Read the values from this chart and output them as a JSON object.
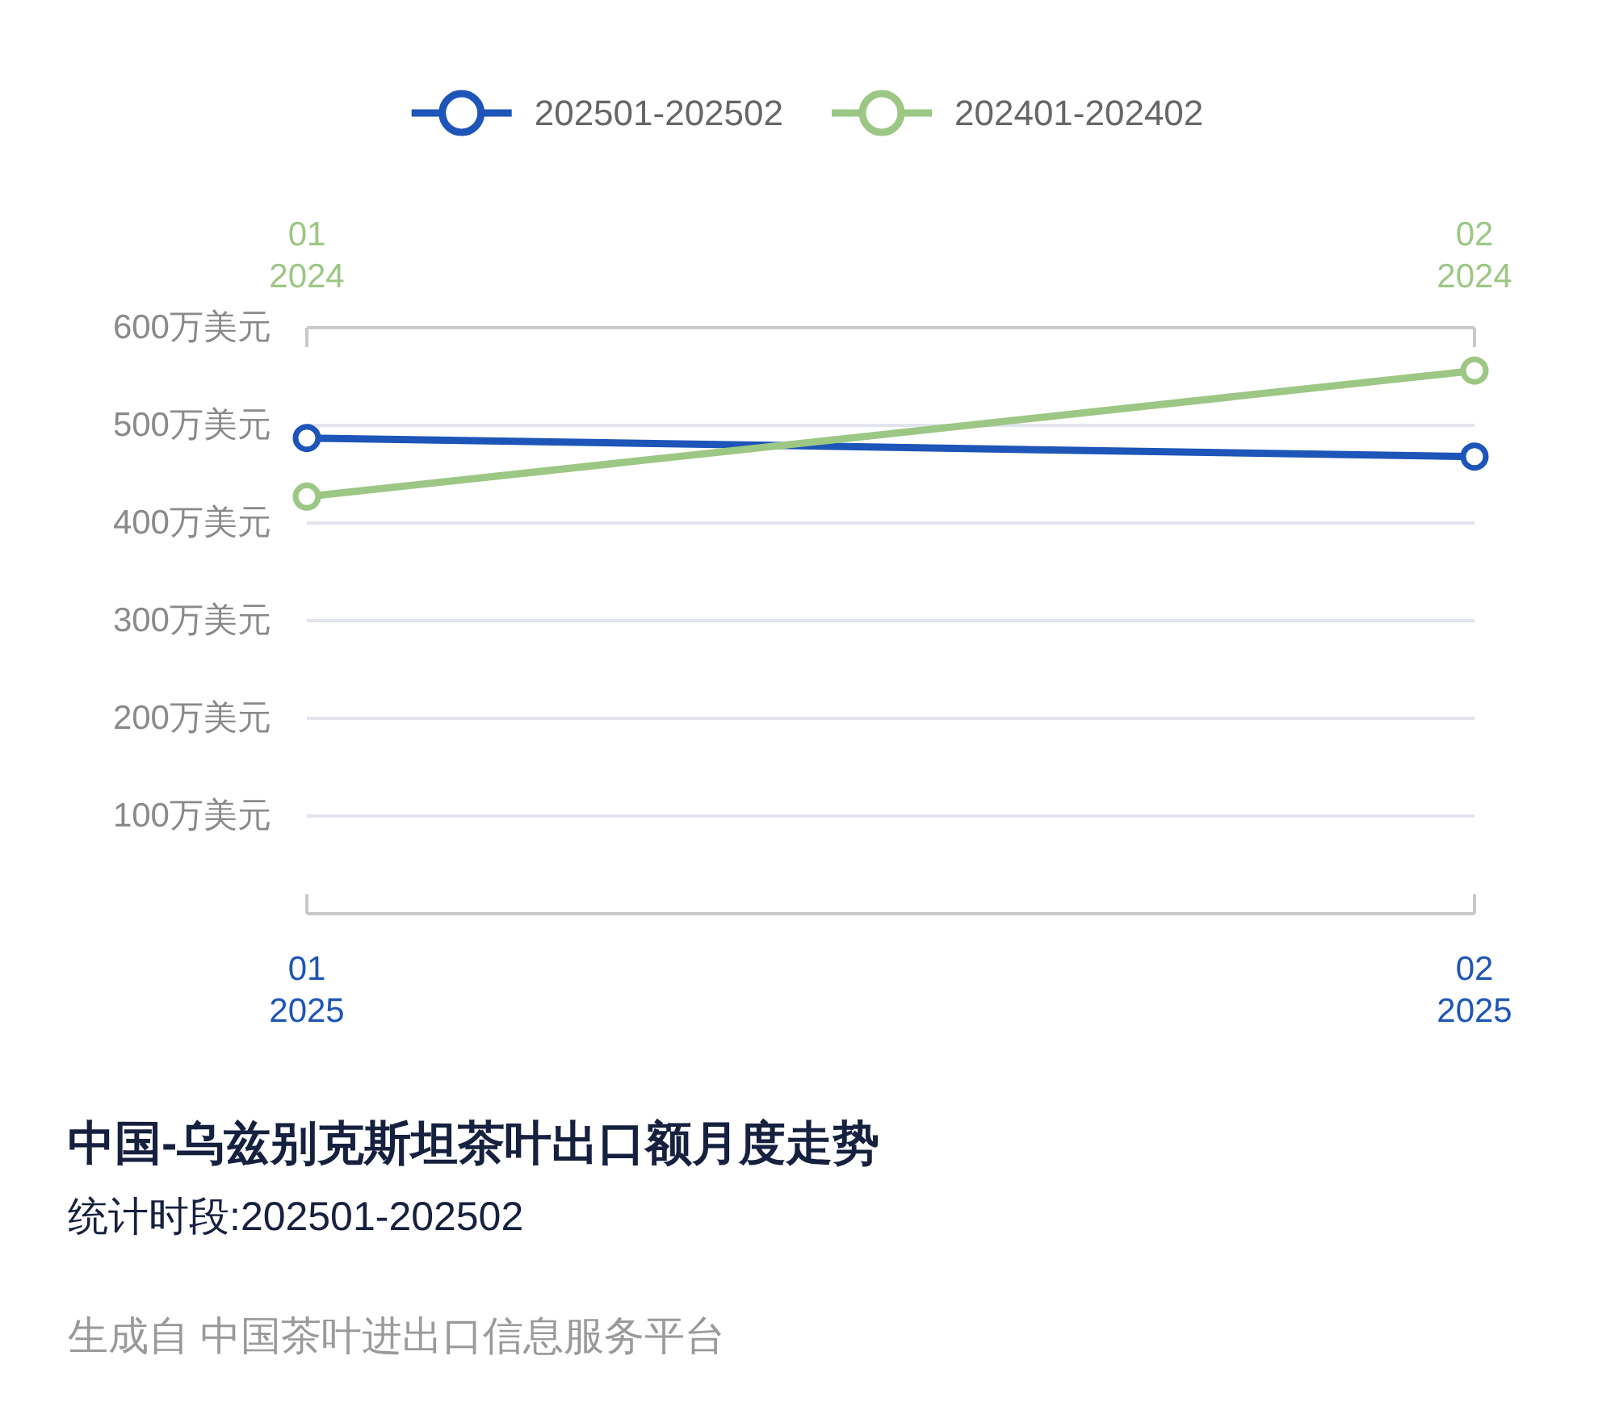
{
  "chart_data": {
    "type": "line",
    "title": "中国-乌兹别克斯坦茶叶出口额月度走势",
    "subtitle": "统计时段:202501-202502",
    "annotations": [
      "生成自 中国茶叶进出口信息服务平台"
    ],
    "xlim": [
      "2025-01",
      "2025-02"
    ],
    "xticks": [
      {
        "value": "2025-01",
        "label": "01\n2025"
      },
      {
        "value": "2025-02",
        "label": "02\n2025"
      }
    ],
    "x2lim": [
      "2024-01",
      "2024-02"
    ],
    "x2ticks": [
      {
        "value": "2024-01",
        "label": "01\n2024"
      },
      {
        "value": "2024-02",
        "label": "02\n2024"
      }
    ],
    "ylim": [
      0,
      600
    ],
    "yticks": [
      {
        "value": 100,
        "label": "100万美元"
      },
      {
        "value": 200,
        "label": "200万美元"
      },
      {
        "value": 300,
        "label": "300万美元"
      },
      {
        "value": 400,
        "label": "400万美元"
      },
      {
        "value": 500,
        "label": "500万美元"
      },
      {
        "value": 600,
        "label": "600万美元"
      }
    ],
    "series": [
      {
        "name": "202501-202502",
        "color": "#1d55b8",
        "x": [
          "2025-01",
          "2025-02"
        ],
        "values": [
          487,
          468
        ]
      },
      {
        "name": "202401-202402",
        "color": "#9cc784",
        "axis": "x2",
        "x": [
          "2024-01",
          "2024-02"
        ],
        "values": [
          427,
          556
        ]
      }
    ],
    "grid": "y",
    "legend": "top",
    "marker": "circle",
    "line_style": "solid"
  }
}
